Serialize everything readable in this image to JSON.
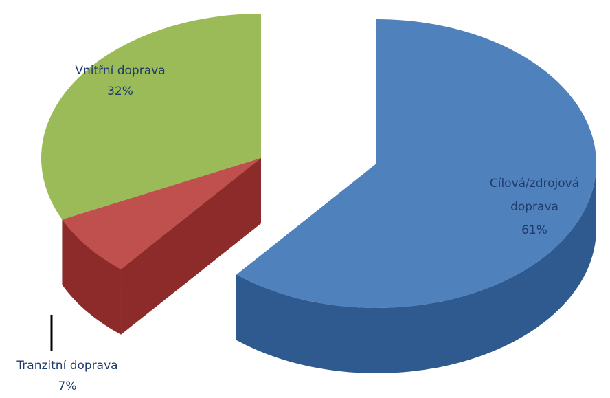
{
  "chart_data": {
    "type": "pie",
    "style": "3d-exploded",
    "categories": [
      "Cílová/zdrojová doprava",
      "Vnitřní doprava",
      "Tranzitní doprava"
    ],
    "values": [
      61,
      32,
      7
    ],
    "labels": [
      {
        "lines": [
          "Cílová/zdrojová",
          "doprava",
          "61%"
        ]
      },
      {
        "lines": [
          "Vnitřní doprava",
          "32%"
        ]
      },
      {
        "lines": [
          "Tranzitní doprava",
          "7%"
        ]
      }
    ],
    "colors": {
      "blue_top": "#4f81bd",
      "blue_side": "#2f5a8f",
      "green_top": "#9bbb59",
      "green_side": "#4f6228",
      "red_top": "#c0504d",
      "red_side": "#8c2b2a",
      "label_text": "#1f3b6a",
      "leader_line": "#000000"
    }
  }
}
